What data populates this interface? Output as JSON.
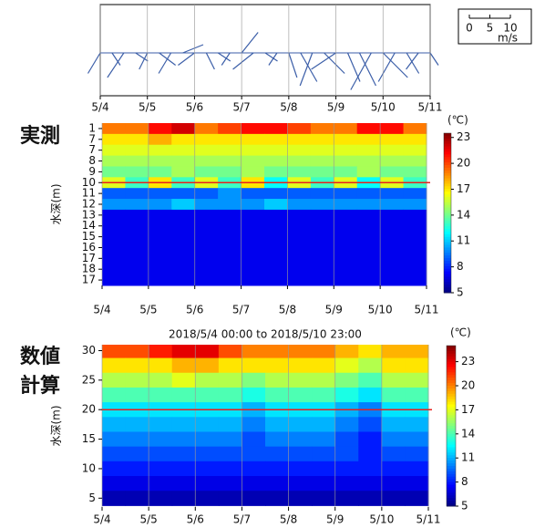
{
  "labels": {
    "observed": "実測",
    "computed_1": "数値",
    "computed_2": "計算"
  },
  "chart_data": [
    {
      "type": "stick",
      "color": "#3b5ea8",
      "xlim": [
        0,
        7
      ],
      "xticks": [
        {
          "value": 0,
          "label": "5/4"
        },
        {
          "value": 1,
          "label": "5/5"
        },
        {
          "value": 2,
          "label": "5/6"
        },
        {
          "value": 3,
          "label": "5/7"
        },
        {
          "value": 4,
          "label": "5/8"
        },
        {
          "value": 5,
          "label": "5/9"
        },
        {
          "value": 6,
          "label": "5/10"
        },
        {
          "value": 7,
          "label": "5/11"
        }
      ],
      "grid": true,
      "x": [
        0,
        0.25,
        0.5,
        0.75,
        1,
        1.25,
        1.5,
        1.75,
        2,
        2.25,
        2.5,
        2.75,
        3,
        3.25,
        3.5,
        3.75,
        4,
        4.25,
        4.5,
        4.75,
        5,
        5.25,
        5.5,
        5.75,
        6,
        6.25,
        6.5,
        6.75,
        7
      ],
      "u": [
        -3,
        2,
        -4,
        3,
        -2,
        4,
        -3,
        5,
        -4,
        2,
        3,
        -2,
        4,
        -5,
        3,
        -2,
        2,
        4,
        -3,
        5,
        -6,
        3,
        4,
        -5,
        6,
        -4,
        3,
        -3,
        2
      ],
      "v": [
        -5,
        -3,
        -6,
        -2,
        -4,
        -3,
        -5,
        2,
        -3,
        -4,
        -2,
        -3,
        5,
        -4,
        -2,
        -3,
        -6,
        -7,
        -8,
        -5,
        -4,
        -7,
        -8,
        -9,
        -6,
        -7,
        -5,
        -4,
        -3
      ],
      "scale_ticks": [
        0,
        5,
        10
      ],
      "scale_unit": "m/s"
    },
    {
      "type": "heatmap",
      "colormap": "jet",
      "ylabel": "水深(m)",
      "xlim": [
        0,
        7
      ],
      "ylim": [
        15.5,
        0.5
      ],
      "grid": true,
      "xticks": [
        {
          "value": 0,
          "label": "5/4"
        },
        {
          "value": 1,
          "label": "5/5"
        },
        {
          "value": 2,
          "label": "5/6"
        },
        {
          "value": 3,
          "label": "5/7"
        },
        {
          "value": 4,
          "label": "5/8"
        },
        {
          "value": 5,
          "label": "5/9"
        },
        {
          "value": 6,
          "label": "5/10"
        },
        {
          "value": 7,
          "label": "5/11"
        }
      ],
      "yticks": [
        1,
        {
          "value": 2,
          "label": "7"
        },
        {
          "value": 3,
          "label": "7"
        },
        {
          "value": 4,
          "label": "8"
        },
        {
          "value": 5,
          "label": "9"
        },
        {
          "value": 6,
          "label": "10"
        },
        {
          "value": 7,
          "label": "11"
        },
        {
          "value": 8,
          "label": "12"
        },
        {
          "value": 9,
          "label": "13"
        },
        {
          "value": 10,
          "label": "14"
        },
        {
          "value": 11,
          "label": "15"
        },
        {
          "value": 12,
          "label": "16"
        },
        {
          "value": 13,
          "label": "17"
        },
        {
          "value": 14,
          "label": "18"
        },
        {
          "value": 15,
          "label": "17"
        }
      ],
      "x": [
        0.25,
        0.75,
        1.25,
        1.75,
        2.25,
        2.75,
        3.25,
        3.75,
        4.25,
        4.75,
        5.25,
        5.75,
        6.25,
        6.75
      ],
      "y": [
        1,
        2,
        3,
        4,
        5,
        6,
        7,
        8,
        9,
        10,
        11,
        12,
        13,
        14,
        15
      ],
      "values": [
        [
          19,
          19,
          21,
          22,
          19,
          20,
          21,
          21,
          20,
          19,
          19,
          21,
          21,
          19
        ],
        [
          17,
          17,
          18,
          17,
          17,
          17,
          17,
          17,
          17,
          17,
          17,
          17,
          17,
          17
        ],
        [
          16,
          16,
          16,
          16,
          16,
          16,
          16,
          16,
          16,
          16,
          16,
          16,
          16,
          16
        ],
        [
          15,
          15,
          15,
          15,
          15,
          15,
          15,
          15,
          15,
          15,
          15,
          15,
          15,
          15
        ],
        [
          14,
          14,
          14,
          15,
          14,
          14,
          15,
          14,
          14,
          14,
          14,
          15,
          14,
          14
        ],
        [
          16,
          13,
          17,
          13,
          16,
          13,
          17,
          12,
          16,
          13,
          16,
          12,
          16,
          13
        ],
        [
          9,
          9,
          9,
          9,
          9,
          10,
          9,
          9,
          9,
          9,
          9,
          9,
          9,
          9
        ],
        [
          10,
          10,
          10,
          11,
          10,
          10,
          10,
          11,
          10,
          10,
          10,
          10,
          10,
          10
        ],
        [
          7,
          7,
          7,
          7,
          7,
          7,
          7,
          7,
          7,
          7,
          7,
          7,
          7,
          7
        ],
        [
          7,
          7,
          7,
          7,
          7,
          7,
          7,
          7,
          7,
          7,
          7,
          7,
          7,
          7
        ],
        [
          7,
          7,
          7,
          7,
          7,
          7,
          7,
          7,
          7,
          7,
          7,
          7,
          7,
          7
        ],
        [
          7,
          7,
          7,
          7,
          7,
          7,
          7,
          7,
          7,
          7,
          7,
          7,
          7,
          7
        ],
        [
          7,
          7,
          7,
          7,
          7,
          7,
          7,
          7,
          7,
          7,
          7,
          7,
          7,
          7
        ],
        [
          7,
          7,
          7,
          7,
          7,
          7,
          7,
          7,
          7,
          7,
          7,
          7,
          7,
          7
        ],
        [
          7,
          7,
          7,
          7,
          7,
          7,
          7,
          7,
          7,
          7,
          7,
          7,
          7,
          7
        ]
      ],
      "hline": {
        "value": 6,
        "color": "#e8201c"
      },
      "colorbar": {
        "label": "(℃)",
        "lim": [
          5,
          23.5
        ],
        "ticks": [
          5,
          8,
          11,
          14,
          17,
          20,
          23
        ]
      }
    },
    {
      "type": "contour",
      "colormap": "jet",
      "title": "2018/5/4 00:00 to 2018/5/10 23:00",
      "ylabel": "水深(m)",
      "xlim": [
        0,
        7
      ],
      "ylim": [
        3.5,
        31
      ],
      "grid": true,
      "xticks": [
        {
          "value": 0,
          "label": "5/4"
        },
        {
          "value": 1,
          "label": "5/5"
        },
        {
          "value": 2,
          "label": "5/6"
        },
        {
          "value": 3,
          "label": "5/7"
        },
        {
          "value": 4,
          "label": "5/8"
        },
        {
          "value": 5,
          "label": "5/9"
        },
        {
          "value": 6,
          "label": "5/10"
        },
        {
          "value": 7,
          "label": "5/11"
        }
      ],
      "yticks": [
        5,
        10,
        15,
        20,
        25,
        30
      ],
      "x": [
        0.25,
        0.75,
        1.25,
        1.75,
        2.25,
        2.75,
        3.25,
        3.75,
        4.25,
        4.75,
        5.25,
        5.75,
        6.25,
        6.75
      ],
      "y": [
        30,
        27.5,
        25,
        22.5,
        20,
        17.5,
        15,
        12.5,
        10,
        7.5,
        5
      ],
      "values": [
        [
          21,
          21,
          22,
          23,
          23,
          21,
          20,
          20,
          20,
          20,
          19,
          18,
          19,
          19
        ],
        [
          18,
          18,
          18,
          19,
          19,
          18,
          18,
          18,
          18,
          18,
          17,
          16,
          18,
          18
        ],
        [
          16,
          16,
          16,
          17,
          16,
          16,
          15,
          16,
          16,
          16,
          15,
          14,
          16,
          16
        ],
        [
          14,
          14,
          14,
          14,
          14,
          14,
          13,
          14,
          14,
          14,
          13,
          12,
          14,
          14
        ],
        [
          12,
          12,
          12,
          12,
          12,
          12,
          11,
          12,
          12,
          12,
          11,
          10,
          12,
          12
        ],
        [
          11,
          11,
          11,
          11,
          11,
          11,
          10,
          11,
          11,
          11,
          10,
          9,
          11,
          11
        ],
        [
          10,
          10,
          10,
          10,
          10,
          10,
          9,
          10,
          10,
          10,
          9,
          8,
          10,
          10
        ],
        [
          9,
          9,
          9,
          9,
          9,
          9,
          9,
          9,
          9,
          9,
          9,
          8,
          9,
          9
        ],
        [
          8,
          8,
          8,
          8,
          8,
          8,
          8,
          8,
          8,
          8,
          8,
          8,
          8,
          8
        ],
        [
          7,
          7,
          7,
          7,
          7,
          7,
          7,
          7,
          7,
          7,
          7,
          7,
          7,
          7
        ],
        [
          6,
          6,
          6,
          6,
          6,
          6,
          6,
          6,
          6,
          6,
          6,
          6,
          6,
          6
        ]
      ],
      "hline": {
        "value": 20,
        "color": "#e8201c"
      },
      "colorbar": {
        "label": "(℃)",
        "lim": [
          5,
          25
        ],
        "ticks": [
          5,
          8,
          11,
          14,
          17,
          20,
          23
        ]
      }
    }
  ]
}
